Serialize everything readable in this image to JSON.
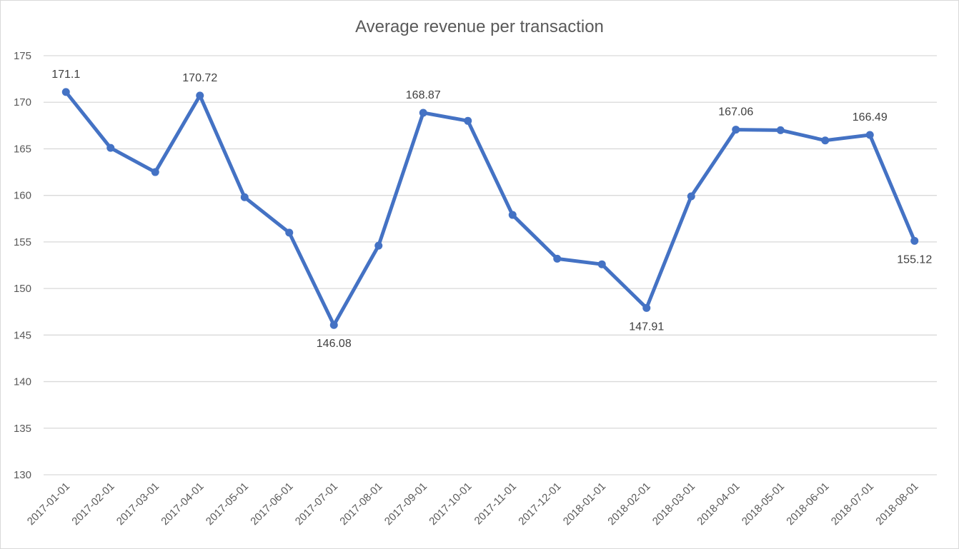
{
  "chart_data": {
    "type": "line",
    "title": "Average revenue per transaction",
    "xlabel": "",
    "ylabel": "",
    "ylim": [
      130,
      175
    ],
    "yticks": [
      130,
      135,
      140,
      145,
      150,
      155,
      160,
      165,
      170,
      175
    ],
    "grid": true,
    "legend": "none",
    "categories": [
      "2017-01-01",
      "2017-02-01",
      "2017-03-01",
      "2017-04-01",
      "2017-05-01",
      "2017-06-01",
      "2017-07-01",
      "2017-08-01",
      "2017-09-01",
      "2017-10-01",
      "2017-11-01",
      "2017-12-01",
      "2018-01-01",
      "2018-02-01",
      "2018-03-01",
      "2018-04-01",
      "2018-05-01",
      "2018-06-01",
      "2018-07-01",
      "2018-08-01"
    ],
    "series": [
      {
        "color": "#4472c4",
        "values": [
          171.1,
          165.1,
          162.5,
          170.72,
          159.8,
          156.0,
          146.08,
          154.6,
          168.87,
          168.0,
          157.9,
          153.2,
          152.6,
          147.91,
          159.9,
          167.06,
          167.0,
          165.9,
          166.49,
          155.12
        ]
      }
    ],
    "data_labels": [
      {
        "index": 0,
        "text": "171.1",
        "position": "above"
      },
      {
        "index": 3,
        "text": "170.72",
        "position": "above"
      },
      {
        "index": 6,
        "text": "146.08",
        "position": "below"
      },
      {
        "index": 8,
        "text": "168.87",
        "position": "above"
      },
      {
        "index": 13,
        "text": "147.91",
        "position": "below"
      },
      {
        "index": 15,
        "text": "167.06",
        "position": "above"
      },
      {
        "index": 18,
        "text": "166.49",
        "position": "above"
      },
      {
        "index": 19,
        "text": "155.12",
        "position": "below"
      }
    ]
  }
}
